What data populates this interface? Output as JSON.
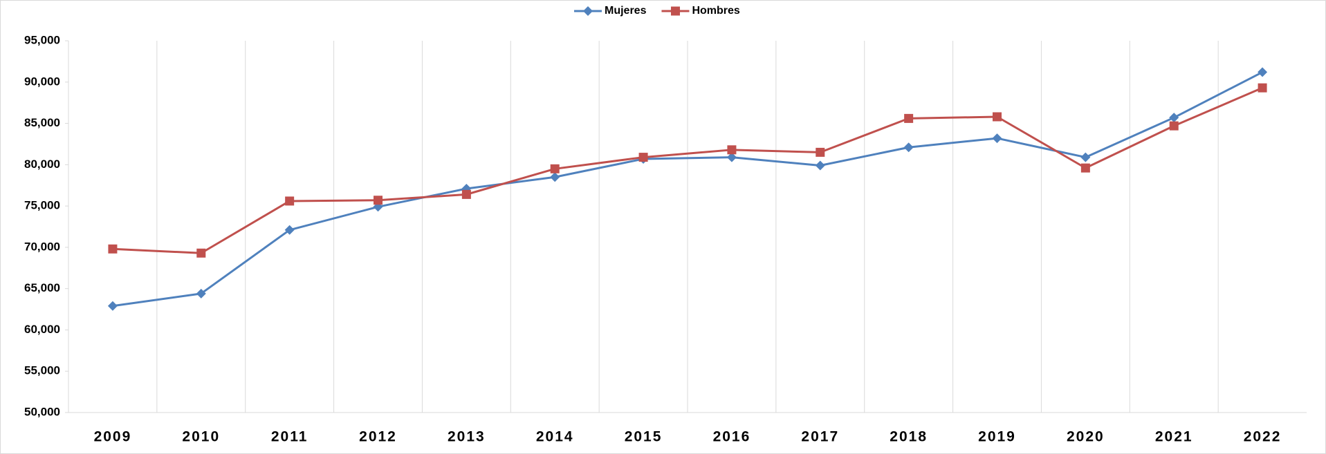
{
  "chart_data": {
    "type": "line",
    "categories": [
      "2009",
      "2010",
      "2011",
      "2012",
      "2013",
      "2014",
      "2015",
      "2016",
      "2017",
      "2018",
      "2019",
      "2020",
      "2021",
      "2022"
    ],
    "series": [
      {
        "name": "Mujeres",
        "color": "#4f81bd",
        "marker": "diamond",
        "values": [
          62900,
          64400,
          72100,
          74900,
          77100,
          78500,
          80700,
          80900,
          79900,
          82100,
          83200,
          80900,
          85700,
          91200
        ]
      },
      {
        "name": "Hombres",
        "color": "#c0504d",
        "marker": "square",
        "values": [
          69800,
          69300,
          75600,
          75700,
          76400,
          79500,
          80900,
          81800,
          81500,
          85600,
          85800,
          79600,
          84700,
          89300
        ]
      }
    ],
    "ylim": [
      50000,
      95000
    ],
    "yticks": [
      {
        "value": 50000,
        "label": "50,000"
      },
      {
        "value": 55000,
        "label": "55,000"
      },
      {
        "value": 60000,
        "label": "60,000"
      },
      {
        "value": 65000,
        "label": "65,000"
      },
      {
        "value": 70000,
        "label": "70,000"
      },
      {
        "value": 75000,
        "label": "75,000"
      },
      {
        "value": 80000,
        "label": "80,000"
      },
      {
        "value": 85000,
        "label": "85,000"
      },
      {
        "value": 90000,
        "label": "90,000"
      },
      {
        "value": 95000,
        "label": "95,000"
      }
    ],
    "legend": "top",
    "grid": "vertical"
  }
}
